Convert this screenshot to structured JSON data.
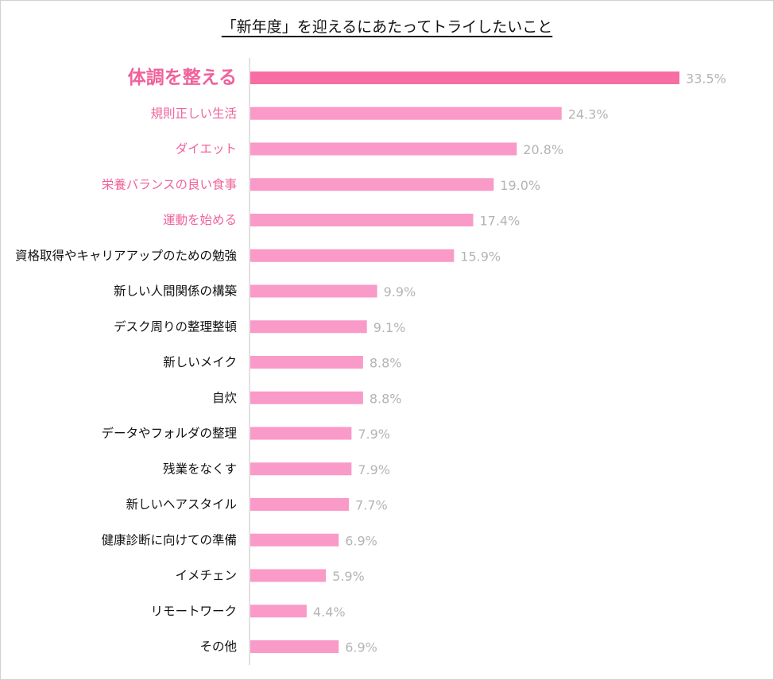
{
  "chart_data": {
    "type": "bar",
    "orientation": "horizontal",
    "title": "「新年度」を迎えるにあたってトライしたいこと",
    "xlabel": "",
    "ylabel": "",
    "unit": "%",
    "xlim": [
      0,
      40
    ],
    "grid": false,
    "categories": [
      "体調を整える",
      "規則正しい生活",
      "ダイエット",
      "栄養バランスの良い食事",
      "運動を始める",
      "資格取得やキャリアアップのための勉強",
      "新しい人間関係の構築",
      "デスク周りの整理整頓",
      "新しいメイク",
      "自炊",
      "データやフォルダの整理",
      "残業をなくす",
      "新しいヘアスタイル",
      "健康診断に向けての準備",
      "イメチェン",
      "リモートワーク",
      "その他"
    ],
    "values": [
      33.5,
      24.3,
      20.8,
      19.0,
      17.4,
      15.9,
      9.9,
      9.1,
      8.8,
      8.8,
      7.9,
      7.9,
      7.7,
      6.9,
      5.9,
      4.4,
      6.9
    ],
    "value_labels": [
      "33.5%",
      "24.3%",
      "20.8%",
      "19.0%",
      "17.4%",
      "15.9%",
      "9.9%",
      "9.1%",
      "8.8%",
      "8.8%",
      "7.9%",
      "7.9%",
      "7.7%",
      "6.9%",
      "5.9%",
      "4.4%",
      "6.9%"
    ],
    "highlighted_count": 5,
    "colors": {
      "top_bar": "#f76ea2",
      "bar": "#f99ac8",
      "highlight_label": "#f0629b",
      "label": "#111111",
      "value_label": "#b4b4b4",
      "axis": "#d9d9d9"
    }
  }
}
